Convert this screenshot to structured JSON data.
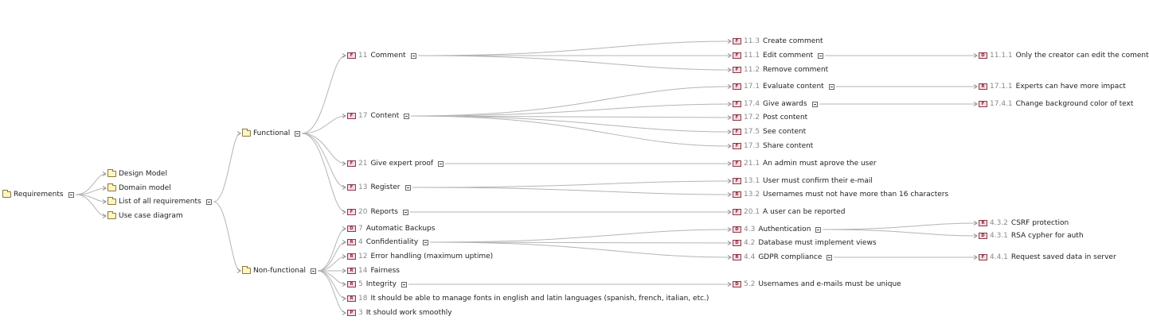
{
  "tree": [
    {
      "id": "root",
      "parent": null,
      "kind": "folder",
      "label": "Requirements",
      "collapsible": true
    },
    {
      "id": "design",
      "parent": "root",
      "kind": "folder",
      "label": "Design Model"
    },
    {
      "id": "domain",
      "parent": "root",
      "kind": "folder",
      "label": "Domain model"
    },
    {
      "id": "list",
      "parent": "root",
      "kind": "folder",
      "label": "List of all requirements",
      "collapsible": true
    },
    {
      "id": "usecase",
      "parent": "root",
      "kind": "folder",
      "label": "Use case diagram"
    },
    {
      "id": "functional",
      "parent": "list",
      "kind": "folder",
      "label": "Functional",
      "collapsible": true
    },
    {
      "id": "nonfunctional",
      "parent": "list",
      "kind": "folder",
      "label": "Non-functional",
      "collapsible": true
    },
    {
      "id": "f11",
      "parent": "functional",
      "kind": "req",
      "badge": "F",
      "num": "11",
      "label": "Comment",
      "collapsible": true
    },
    {
      "id": "f17",
      "parent": "functional",
      "kind": "req",
      "badge": "F",
      "num": "17",
      "label": "Content",
      "collapsible": true
    },
    {
      "id": "f21",
      "parent": "functional",
      "kind": "req",
      "badge": "F",
      "num": "21",
      "label": "Give expert proof",
      "collapsible": true
    },
    {
      "id": "f13",
      "parent": "functional",
      "kind": "req",
      "badge": "F",
      "num": "13",
      "label": "Register",
      "collapsible": true
    },
    {
      "id": "f20",
      "parent": "functional",
      "kind": "req",
      "badge": "F",
      "num": "20",
      "label": "Reports",
      "collapsible": true
    },
    {
      "id": "n7",
      "parent": "nonfunctional",
      "kind": "req",
      "badge": "D",
      "num": "7",
      "label": "Automatic Backups"
    },
    {
      "id": "n4",
      "parent": "nonfunctional",
      "kind": "req",
      "badge": "R",
      "num": "4",
      "label": "Confidentiality",
      "collapsible": true
    },
    {
      "id": "n12",
      "parent": "nonfunctional",
      "kind": "req",
      "badge": "R",
      "num": "12",
      "label": "Error handling (maximum uptime)"
    },
    {
      "id": "n14",
      "parent": "nonfunctional",
      "kind": "req",
      "badge": "R",
      "num": "14",
      "label": "Fairness"
    },
    {
      "id": "n5",
      "parent": "nonfunctional",
      "kind": "req",
      "badge": "R",
      "num": "5",
      "label": "Integrity",
      "collapsible": true
    },
    {
      "id": "n18",
      "parent": "nonfunctional",
      "kind": "req",
      "badge": "R",
      "num": "18",
      "label": "It should be able to manage fonts in english and latin languages (spanish, french, italian, etc.)"
    },
    {
      "id": "n3",
      "parent": "nonfunctional",
      "kind": "req",
      "badge": "P",
      "num": "3",
      "label": "It should work smoothly"
    },
    {
      "id": "f11_3",
      "parent": "f11",
      "kind": "req",
      "badge": "F",
      "num": "11.3",
      "label": "Create comment"
    },
    {
      "id": "f11_1",
      "parent": "f11",
      "kind": "req",
      "badge": "F",
      "num": "11.1",
      "label": "Edit comment",
      "collapsible": true
    },
    {
      "id": "f11_2",
      "parent": "f11",
      "kind": "req",
      "badge": "F",
      "num": "11.2",
      "label": "Remove comment"
    },
    {
      "id": "f17_1",
      "parent": "f17",
      "kind": "req",
      "badge": "F",
      "num": "17.1",
      "label": "Evaluate content",
      "collapsible": true
    },
    {
      "id": "f17_4",
      "parent": "f17",
      "kind": "req",
      "badge": "F",
      "num": "17.4",
      "label": "Give awards",
      "collapsible": true
    },
    {
      "id": "f17_2",
      "parent": "f17",
      "kind": "req",
      "badge": "F",
      "num": "17.2",
      "label": "Post content"
    },
    {
      "id": "f17_5",
      "parent": "f17",
      "kind": "req",
      "badge": "F",
      "num": "17.5",
      "label": "See content"
    },
    {
      "id": "f17_3",
      "parent": "f17",
      "kind": "req",
      "badge": "F",
      "num": "17.3",
      "label": "Share content"
    },
    {
      "id": "f21_1",
      "parent": "f21",
      "kind": "req",
      "badge": "F",
      "num": "21.1",
      "label": "An admin must aprove the user"
    },
    {
      "id": "f13_1",
      "parent": "f13",
      "kind": "req",
      "badge": "F",
      "num": "13.1",
      "label": "User must confirm their e-mail"
    },
    {
      "id": "f13_2",
      "parent": "f13",
      "kind": "req",
      "badge": "R",
      "num": "13.2",
      "label": "Usernames must not have more than 16 characters"
    },
    {
      "id": "f20_1",
      "parent": "f20",
      "kind": "req",
      "badge": "F",
      "num": "20.1",
      "label": "A user can be reported"
    },
    {
      "id": "n4_3",
      "parent": "n4",
      "kind": "req",
      "badge": "D",
      "num": "4.3",
      "label": "Authentication",
      "collapsible": true
    },
    {
      "id": "n4_2",
      "parent": "n4",
      "kind": "req",
      "badge": "D",
      "num": "4.2",
      "label": "Database must implement views"
    },
    {
      "id": "n4_4",
      "parent": "n4",
      "kind": "req",
      "badge": "R",
      "num": "4.4",
      "label": "GDPR compliance",
      "collapsible": true
    },
    {
      "id": "n5_2",
      "parent": "n5",
      "kind": "req",
      "badge": "D",
      "num": "5.2",
      "label": "Usernames and e-mails must be unique"
    },
    {
      "id": "f11_1_1",
      "parent": "f11_1",
      "kind": "req",
      "badge": "D",
      "num": "11.1.1",
      "label": "Only the creator can edit the coment"
    },
    {
      "id": "f17_1_1",
      "parent": "f17_1",
      "kind": "req",
      "badge": "R",
      "num": "17.1.1",
      "label": "Experts can have more impact"
    },
    {
      "id": "f17_4_1",
      "parent": "f17_4",
      "kind": "req",
      "badge": "F",
      "num": "17.4.1",
      "label": "Change background color of text"
    },
    {
      "id": "n4_3_2",
      "parent": "n4_3",
      "kind": "req",
      "badge": "R",
      "num": "4.3.2",
      "label": "CSRF protection"
    },
    {
      "id": "n4_3_1",
      "parent": "n4_3",
      "kind": "req",
      "badge": "D",
      "num": "4.3.1",
      "label": "RSA cypher for auth"
    },
    {
      "id": "n4_4_1",
      "parent": "n4_4",
      "kind": "req",
      "badge": "F",
      "num": "4.4.1",
      "label": "Request saved data in server"
    }
  ],
  "colors": {
    "edge": "#b5b5b5",
    "folder_border": "#8a7a3a",
    "req_border": "#8b3a4a",
    "num_text": "#8a8a8a"
  },
  "icons": {
    "folder": "folder-icon",
    "requirement": "requirement-icon",
    "toggle": "collapse-toggle-icon"
  }
}
